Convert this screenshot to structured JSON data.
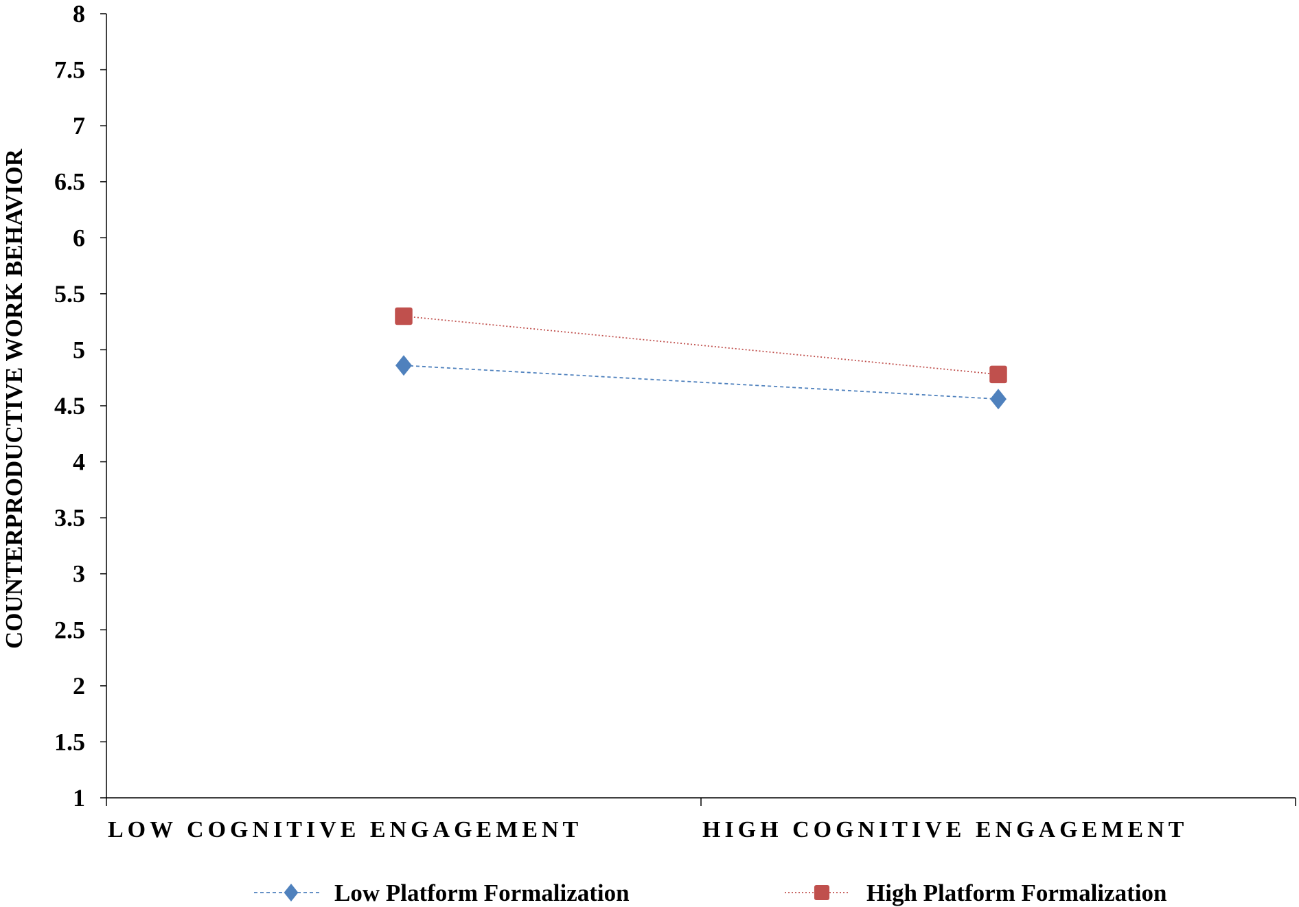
{
  "colors": {
    "axis": "#000000",
    "low_series": "#4F81BD",
    "high_series": "#C0504D"
  },
  "chart_data": {
    "type": "line",
    "title": "",
    "xlabel": "",
    "ylabel": "COUNTERPRODUCTIVE WORK BEHAVIOR",
    "categories": [
      "LOW COGNITIVE ENGAGEMENT",
      "HIGH COGNITIVE ENGAGEMENT"
    ],
    "ylim": [
      1,
      8
    ],
    "yticks": [
      "1",
      "1.5",
      "2",
      "2.5",
      "3",
      "3.5",
      "4",
      "4.5",
      "5",
      "5.5",
      "6",
      "6.5",
      "7",
      "7.5",
      "8"
    ],
    "grid": false,
    "legend_position": "bottom",
    "series": [
      {
        "name": "Low Platform Formalization",
        "values": [
          4.86,
          4.56
        ],
        "marker": "diamond",
        "line_style": "dashed",
        "color": "#4F81BD"
      },
      {
        "name": "High Platform Formalization",
        "values": [
          5.3,
          4.78
        ],
        "marker": "square",
        "line_style": "dotted",
        "color": "#C0504D"
      }
    ]
  }
}
